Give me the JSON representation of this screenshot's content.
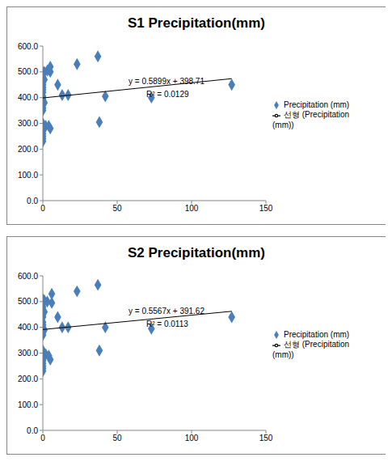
{
  "chart_data": [
    {
      "type": "scatter",
      "title": "S1 Precipitation(mm)",
      "series": [
        {
          "name": "Precipitation (mm)",
          "color": "#4a7ebb",
          "marker": "diamond",
          "x": [
            0,
            0,
            0,
            0,
            0,
            0,
            0,
            0,
            0,
            0,
            0,
            0,
            0,
            0,
            0,
            0,
            0,
            0,
            0,
            0,
            0,
            0,
            0,
            0,
            1,
            1,
            1,
            2,
            3,
            5,
            5,
            4,
            5,
            10,
            13,
            17,
            23,
            37,
            38,
            42,
            73,
            127
          ],
          "values": [
            500,
            495,
            490,
            480,
            470,
            460,
            450,
            440,
            430,
            420,
            405,
            395,
            385,
            375,
            360,
            350,
            300,
            290,
            280,
            270,
            260,
            250,
            240,
            230,
            500,
            470,
            380,
            290,
            505,
            520,
            500,
            290,
            280,
            450,
            410,
            410,
            530,
            560,
            305,
            405,
            400,
            450
          ]
        },
        {
          "name": "선형 (Precipitation (mm))",
          "type": "line",
          "color": "#000000",
          "slope": 0.5899,
          "intercept": 398.71
        }
      ],
      "annotations": [
        "y = 0.5899x + 398.71",
        "R² = 0.0129"
      ],
      "xlim": [
        0,
        150
      ],
      "xticks": [
        0,
        50,
        100,
        150
      ],
      "ylim": [
        0,
        600
      ],
      "yticks": [
        {
          "value": 0,
          "label": "0.0"
        },
        {
          "value": 100,
          "label": "100.0"
        },
        {
          "value": 200,
          "label": "200.0"
        },
        {
          "value": 300,
          "label": "300.0"
        },
        {
          "value": 400,
          "label": "400.0"
        },
        {
          "value": 500,
          "label": "500.0"
        },
        {
          "value": 600,
          "label": "600.0"
        }
      ],
      "grid": false,
      "legend": "right"
    },
    {
      "type": "scatter",
      "title": "S2 Precipitation(mm)",
      "series": [
        {
          "name": "Precipitation (mm)",
          "color": "#4a7ebb",
          "marker": "diamond",
          "x": [
            0,
            0,
            0,
            0,
            0,
            0,
            0,
            0,
            0,
            0,
            0,
            0,
            0,
            0,
            0,
            0,
            0,
            0,
            0,
            0,
            0,
            0,
            1,
            1,
            1,
            2,
            3,
            6,
            6,
            4,
            5,
            10,
            13,
            17,
            23,
            37,
            38,
            42,
            73,
            127
          ],
          "values": [
            510,
            500,
            490,
            480,
            470,
            460,
            450,
            440,
            420,
            410,
            400,
            390,
            380,
            370,
            310,
            300,
            280,
            270,
            260,
            250,
            240,
            230,
            505,
            460,
            390,
            295,
            500,
            530,
            495,
            290,
            275,
            440,
            400,
            400,
            540,
            565,
            310,
            400,
            395,
            440
          ]
        },
        {
          "name": "선형 (Precipitation (mm))",
          "type": "line",
          "color": "#000000",
          "slope": 0.5567,
          "intercept": 391.62
        }
      ],
      "annotations": [
        "y = 0.5567x + 391.62",
        "R² = 0.0113"
      ],
      "xlim": [
        0,
        150
      ],
      "xticks": [
        0,
        50,
        100,
        150
      ],
      "ylim": [
        0,
        600
      ],
      "yticks": [
        {
          "value": 0,
          "label": "0.0"
        },
        {
          "value": 100,
          "label": "100.0"
        },
        {
          "value": 200,
          "label": "200.0"
        },
        {
          "value": 300,
          "label": "300.0"
        },
        {
          "value": 400,
          "label": "400.0"
        },
        {
          "value": 500,
          "label": "500.0"
        },
        {
          "value": 600,
          "label": "600.0"
        }
      ],
      "grid": false,
      "legend": "right"
    }
  ]
}
